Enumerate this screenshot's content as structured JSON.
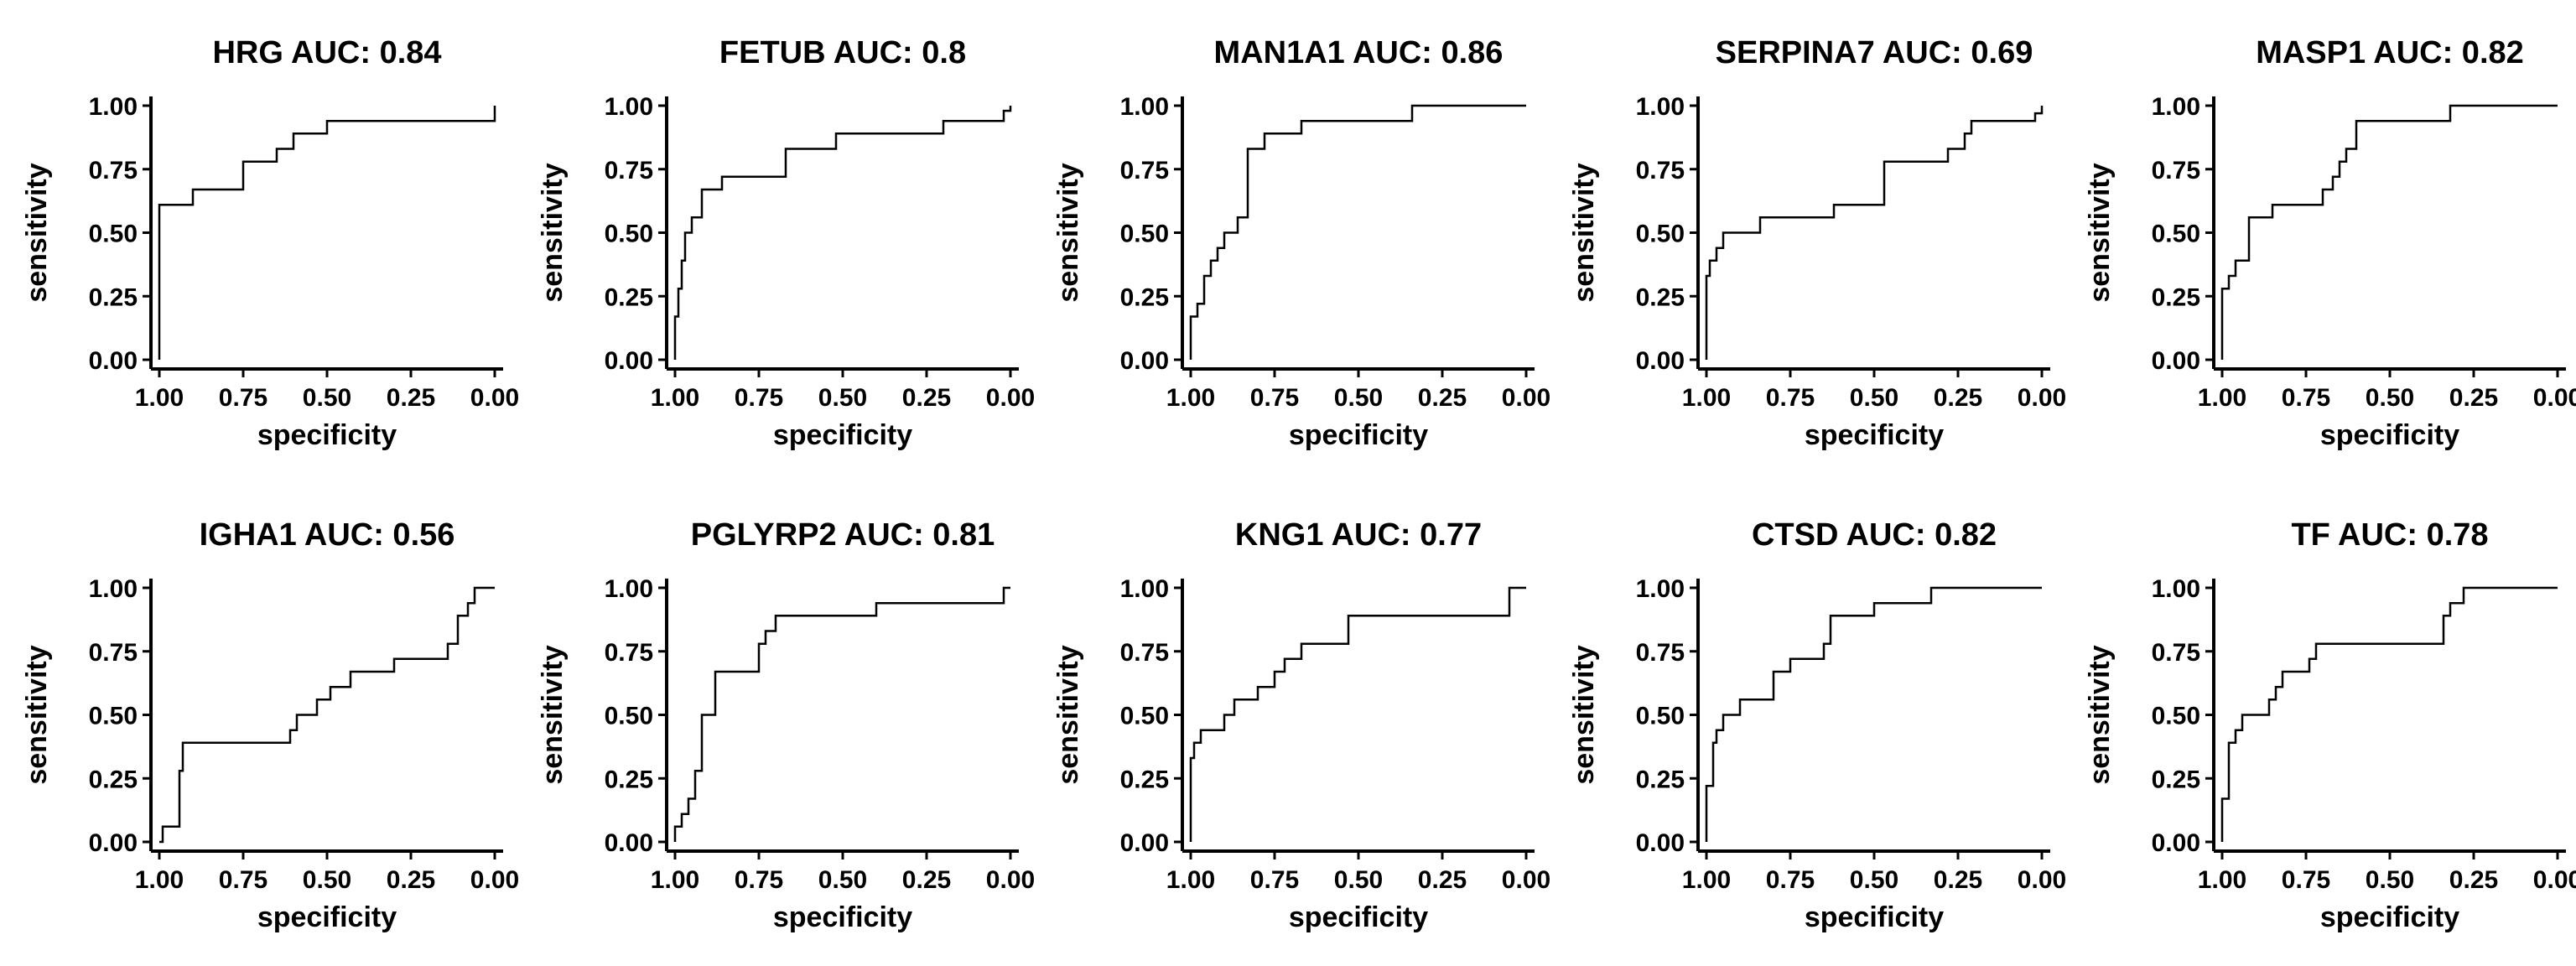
{
  "figure": {
    "line_color": "#000000",
    "xlabel": "specificity",
    "ylabel": "sensitivity"
  },
  "chart_data": [
    {
      "type": "line",
      "title": "HRG AUC: 0.84",
      "xlabel": "specificity",
      "ylabel": "sensitivity",
      "xlim": [
        1,
        0
      ],
      "ylim": [
        0,
        1
      ],
      "xticks": [
        "1.00",
        "0.75",
        "0.50",
        "0.25",
        "0.00"
      ],
      "yticks": [
        "0.00",
        "0.25",
        "0.50",
        "0.75",
        "1.00"
      ],
      "grid": false,
      "x": [
        1.0,
        1.0,
        0.9,
        0.9,
        0.75,
        0.75,
        0.65,
        0.65,
        0.6,
        0.6,
        0.5,
        0.5,
        0.0,
        0.0
      ],
      "y": [
        0.0,
        0.61,
        0.61,
        0.67,
        0.67,
        0.78,
        0.78,
        0.83,
        0.83,
        0.89,
        0.89,
        0.94,
        0.94,
        1.0
      ]
    },
    {
      "type": "line",
      "title": "FETUB AUC: 0.8",
      "xlabel": "specificity",
      "ylabel": "sensitivity",
      "xlim": [
        1,
        0
      ],
      "ylim": [
        0,
        1
      ],
      "xticks": [
        "1.00",
        "0.75",
        "0.50",
        "0.25",
        "0.00"
      ],
      "yticks": [
        "0.00",
        "0.25",
        "0.50",
        "0.75",
        "1.00"
      ],
      "grid": false,
      "x": [
        1.0,
        1.0,
        0.99,
        0.99,
        0.98,
        0.98,
        0.97,
        0.97,
        0.95,
        0.95,
        0.92,
        0.92,
        0.86,
        0.86,
        0.81,
        0.81,
        0.67,
        0.67,
        0.52,
        0.52,
        0.2,
        0.2,
        0.02,
        0.02,
        0.0,
        0.0
      ],
      "y": [
        0.0,
        0.17,
        0.17,
        0.28,
        0.28,
        0.39,
        0.39,
        0.5,
        0.5,
        0.56,
        0.56,
        0.67,
        0.67,
        0.72,
        0.72,
        0.72,
        0.72,
        0.83,
        0.83,
        0.89,
        0.89,
        0.94,
        0.94,
        0.98,
        0.98,
        1.0
      ]
    },
    {
      "type": "line",
      "title": "MAN1A1 AUC: 0.86",
      "xlabel": "specificity",
      "ylabel": "sensitivity",
      "xlim": [
        1,
        0
      ],
      "ylim": [
        0,
        1
      ],
      "xticks": [
        "1.00",
        "0.75",
        "0.50",
        "0.25",
        "0.00"
      ],
      "yticks": [
        "0.00",
        "0.25",
        "0.50",
        "0.75",
        "1.00"
      ],
      "grid": false,
      "x": [
        1.0,
        1.0,
        0.98,
        0.98,
        0.96,
        0.96,
        0.94,
        0.94,
        0.92,
        0.92,
        0.9,
        0.9,
        0.88,
        0.88,
        0.86,
        0.86,
        0.83,
        0.83,
        0.78,
        0.78,
        0.67,
        0.67,
        0.34,
        0.34,
        0.0
      ],
      "y": [
        0.0,
        0.17,
        0.17,
        0.22,
        0.22,
        0.33,
        0.33,
        0.39,
        0.39,
        0.44,
        0.44,
        0.5,
        0.5,
        0.5,
        0.5,
        0.56,
        0.56,
        0.83,
        0.83,
        0.89,
        0.89,
        0.94,
        0.94,
        1.0,
        1.0
      ]
    },
    {
      "type": "line",
      "title": "SERPINA7 AUC: 0.69",
      "xlabel": "specificity",
      "ylabel": "sensitivity",
      "xlim": [
        1,
        0
      ],
      "ylim": [
        0,
        1
      ],
      "xticks": [
        "1.00",
        "0.75",
        "0.50",
        "0.25",
        "0.00"
      ],
      "yticks": [
        "0.00",
        "0.25",
        "0.50",
        "0.75",
        "1.00"
      ],
      "grid": false,
      "x": [
        1.0,
        1.0,
        0.99,
        0.99,
        0.97,
        0.97,
        0.95,
        0.95,
        0.84,
        0.84,
        0.62,
        0.62,
        0.47,
        0.47,
        0.28,
        0.28,
        0.23,
        0.23,
        0.21,
        0.21,
        0.02,
        0.02,
        0.0,
        0.0
      ],
      "y": [
        0.0,
        0.33,
        0.33,
        0.39,
        0.39,
        0.44,
        0.44,
        0.5,
        0.5,
        0.56,
        0.56,
        0.61,
        0.61,
        0.78,
        0.78,
        0.83,
        0.83,
        0.89,
        0.89,
        0.94,
        0.94,
        0.97,
        0.97,
        1.0
      ]
    },
    {
      "type": "line",
      "title": "MASP1 AUC: 0.82",
      "xlabel": "specificity",
      "ylabel": "sensitivity",
      "xlim": [
        1,
        0
      ],
      "ylim": [
        0,
        1
      ],
      "xticks": [
        "1.00",
        "0.75",
        "0.50",
        "0.25",
        "0.00"
      ],
      "yticks": [
        "0.00",
        "0.25",
        "0.50",
        "0.75",
        "1.00"
      ],
      "grid": false,
      "x": [
        1.0,
        1.0,
        0.98,
        0.98,
        0.96,
        0.96,
        0.92,
        0.92,
        0.85,
        0.85,
        0.7,
        0.7,
        0.67,
        0.67,
        0.65,
        0.65,
        0.63,
        0.63,
        0.6,
        0.6,
        0.32,
        0.32,
        0.0
      ],
      "y": [
        0.0,
        0.28,
        0.28,
        0.33,
        0.33,
        0.39,
        0.39,
        0.56,
        0.56,
        0.61,
        0.61,
        0.67,
        0.67,
        0.72,
        0.72,
        0.78,
        0.78,
        0.83,
        0.83,
        0.94,
        0.94,
        1.0,
        1.0
      ]
    },
    {
      "type": "line",
      "title": "IGHA1 AUC: 0.56",
      "xlabel": "specificity",
      "ylabel": "sensitivity",
      "xlim": [
        1,
        0
      ],
      "ylim": [
        0,
        1
      ],
      "xticks": [
        "1.00",
        "0.75",
        "0.50",
        "0.25",
        "0.00"
      ],
      "yticks": [
        "0.00",
        "0.25",
        "0.50",
        "0.75",
        "1.00"
      ],
      "grid": false,
      "x": [
        1.0,
        0.99,
        0.99,
        0.94,
        0.94,
        0.93,
        0.93,
        0.61,
        0.61,
        0.59,
        0.59,
        0.53,
        0.53,
        0.49,
        0.49,
        0.43,
        0.43,
        0.3,
        0.3,
        0.14,
        0.14,
        0.11,
        0.11,
        0.08,
        0.08,
        0.06,
        0.06,
        0.0
      ],
      "y": [
        0.0,
        0.0,
        0.06,
        0.06,
        0.28,
        0.28,
        0.39,
        0.39,
        0.44,
        0.44,
        0.5,
        0.5,
        0.56,
        0.56,
        0.61,
        0.61,
        0.67,
        0.67,
        0.72,
        0.72,
        0.78,
        0.78,
        0.89,
        0.89,
        0.94,
        0.94,
        1.0,
        1.0
      ]
    },
    {
      "type": "line",
      "title": "PGLYRP2 AUC: 0.81",
      "xlabel": "specificity",
      "ylabel": "sensitivity",
      "xlim": [
        1,
        0
      ],
      "ylim": [
        0,
        1
      ],
      "xticks": [
        "1.00",
        "0.75",
        "0.50",
        "0.25",
        "0.00"
      ],
      "yticks": [
        "0.00",
        "0.25",
        "0.50",
        "0.75",
        "1.00"
      ],
      "grid": false,
      "x": [
        1.0,
        1.0,
        0.98,
        0.98,
        0.96,
        0.96,
        0.94,
        0.94,
        0.92,
        0.92,
        0.88,
        0.88,
        0.86,
        0.86,
        0.75,
        0.75,
        0.73,
        0.73,
        0.7,
        0.7,
        0.4,
        0.4,
        0.02,
        0.02,
        0.0
      ],
      "y": [
        0.0,
        0.06,
        0.06,
        0.11,
        0.11,
        0.17,
        0.17,
        0.28,
        0.28,
        0.5,
        0.5,
        0.67,
        0.67,
        0.67,
        0.67,
        0.78,
        0.78,
        0.83,
        0.83,
        0.89,
        0.89,
        0.94,
        0.94,
        1.0,
        1.0
      ]
    },
    {
      "type": "line",
      "title": "KNG1 AUC: 0.77",
      "xlabel": "specificity",
      "ylabel": "sensitivity",
      "xlim": [
        1,
        0
      ],
      "ylim": [
        0,
        1
      ],
      "xticks": [
        "1.00",
        "0.75",
        "0.50",
        "0.25",
        "0.00"
      ],
      "yticks": [
        "0.00",
        "0.25",
        "0.50",
        "0.75",
        "1.00"
      ],
      "grid": false,
      "x": [
        1.0,
        1.0,
        0.99,
        0.99,
        0.97,
        0.97,
        0.95,
        0.95,
        0.9,
        0.9,
        0.87,
        0.87,
        0.8,
        0.8,
        0.75,
        0.75,
        0.72,
        0.72,
        0.67,
        0.67,
        0.53,
        0.53,
        0.05,
        0.05,
        0.0
      ],
      "y": [
        0.0,
        0.33,
        0.33,
        0.39,
        0.39,
        0.44,
        0.44,
        0.44,
        0.44,
        0.5,
        0.5,
        0.56,
        0.56,
        0.61,
        0.61,
        0.67,
        0.67,
        0.72,
        0.72,
        0.78,
        0.78,
        0.89,
        0.89,
        1.0,
        1.0
      ]
    },
    {
      "type": "line",
      "title": "CTSD AUC: 0.82",
      "xlabel": "specificity",
      "ylabel": "sensitivity",
      "xlim": [
        1,
        0
      ],
      "ylim": [
        0,
        1
      ],
      "xticks": [
        "1.00",
        "0.75",
        "0.50",
        "0.25",
        "0.00"
      ],
      "yticks": [
        "0.00",
        "0.25",
        "0.50",
        "0.75",
        "1.00"
      ],
      "grid": false,
      "x": [
        1.0,
        1.0,
        0.98,
        0.98,
        0.97,
        0.97,
        0.95,
        0.95,
        0.9,
        0.9,
        0.8,
        0.8,
        0.75,
        0.75,
        0.65,
        0.65,
        0.63,
        0.63,
        0.5,
        0.5,
        0.33,
        0.33,
        0.0
      ],
      "y": [
        0.0,
        0.22,
        0.22,
        0.39,
        0.39,
        0.44,
        0.44,
        0.5,
        0.5,
        0.56,
        0.56,
        0.67,
        0.67,
        0.72,
        0.72,
        0.78,
        0.78,
        0.89,
        0.89,
        0.94,
        0.94,
        1.0,
        1.0
      ]
    },
    {
      "type": "line",
      "title": "TF AUC: 0.78",
      "xlabel": "specificity",
      "ylabel": "sensitivity",
      "xlim": [
        1,
        0
      ],
      "ylim": [
        0,
        1
      ],
      "xticks": [
        "1.00",
        "0.75",
        "0.50",
        "0.25",
        "0.00"
      ],
      "yticks": [
        "0.00",
        "0.25",
        "0.50",
        "0.75",
        "1.00"
      ],
      "grid": false,
      "x": [
        1.0,
        1.0,
        0.98,
        0.98,
        0.96,
        0.96,
        0.94,
        0.94,
        0.92,
        0.92,
        0.86,
        0.86,
        0.84,
        0.84,
        0.82,
        0.82,
        0.78,
        0.78,
        0.74,
        0.74,
        0.72,
        0.72,
        0.34,
        0.34,
        0.32,
        0.32,
        0.28,
        0.28,
        0.0
      ],
      "y": [
        0.0,
        0.17,
        0.17,
        0.39,
        0.39,
        0.44,
        0.44,
        0.5,
        0.5,
        0.5,
        0.5,
        0.56,
        0.56,
        0.61,
        0.61,
        0.67,
        0.67,
        0.67,
        0.67,
        0.72,
        0.72,
        0.78,
        0.78,
        0.89,
        0.89,
        0.94,
        0.94,
        1.0,
        1.0
      ]
    }
  ]
}
